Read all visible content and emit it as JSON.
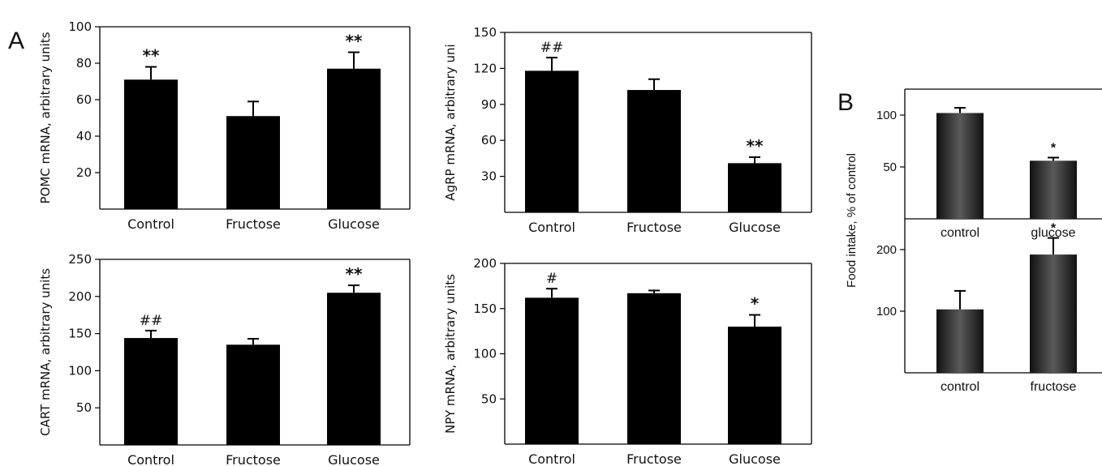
{
  "panels": {
    "a_label": "A",
    "b_label": "B"
  },
  "colors": {
    "bar": "#000000",
    "bar_b_edge": "#111111",
    "bar_b_center": "#555555",
    "axis": "#000000"
  },
  "chart_data": [
    {
      "id": "pomc",
      "type": "bar",
      "panel": "A",
      "ylabel": "POMC mRNA, arbitrary units",
      "categories": [
        "Control",
        "Fructose",
        "Glucose"
      ],
      "values": [
        71,
        51,
        77
      ],
      "errors": [
        7,
        8,
        9
      ],
      "significance": [
        "**",
        "",
        "**"
      ],
      "ylim": [
        0,
        100
      ],
      "yticks": [
        20,
        40,
        60,
        80,
        100
      ]
    },
    {
      "id": "agrp",
      "type": "bar",
      "panel": "A",
      "ylabel": "AgRP mRNA, arbitrary uni",
      "categories": [
        "Control",
        "Fructose",
        "Glucose"
      ],
      "values": [
        118,
        102,
        41
      ],
      "errors": [
        11,
        9,
        5
      ],
      "significance": [
        "##",
        "",
        "**"
      ],
      "ylim": [
        0,
        150
      ],
      "yticks": [
        30,
        60,
        90,
        120,
        150
      ]
    },
    {
      "id": "cart",
      "type": "bar",
      "panel": "A",
      "ylabel": "CART mRNA, arbitrary units",
      "categories": [
        "Control",
        "Fructose",
        "Glucose"
      ],
      "values": [
        144,
        135,
        205
      ],
      "errors": [
        10,
        8,
        10
      ],
      "significance": [
        "##",
        "",
        "**"
      ],
      "ylim": [
        0,
        250
      ],
      "yticks": [
        50,
        100,
        150,
        200,
        250
      ]
    },
    {
      "id": "npy",
      "type": "bar",
      "panel": "A",
      "ylabel": "NPY mRNA, arbitrary units",
      "categories": [
        "Control",
        "Fructose",
        "Glucose"
      ],
      "values": [
        162,
        167,
        130
      ],
      "errors": [
        10,
        3,
        13
      ],
      "significance": [
        "#",
        "",
        "*"
      ],
      "ylim": [
        0,
        200
      ],
      "yticks": [
        50,
        100,
        150,
        200
      ]
    },
    {
      "id": "food_glucose",
      "type": "bar",
      "panel": "B",
      "ylabel": "Food intake, % of control",
      "categories": [
        "control",
        "glucose"
      ],
      "values": [
        102,
        56
      ],
      "errors": [
        5,
        3
      ],
      "significance": [
        "",
        "*"
      ],
      "ylim": [
        0,
        125
      ],
      "yticks": [
        50,
        100
      ]
    },
    {
      "id": "food_fructose",
      "type": "bar",
      "panel": "B",
      "ylabel": "",
      "categories": [
        "control",
        "fructose"
      ],
      "values": [
        103,
        192
      ],
      "errors": [
        30,
        27
      ],
      "significance": [
        "",
        "*"
      ],
      "ylim": [
        0,
        250
      ],
      "yticks": [
        100,
        200
      ]
    }
  ]
}
